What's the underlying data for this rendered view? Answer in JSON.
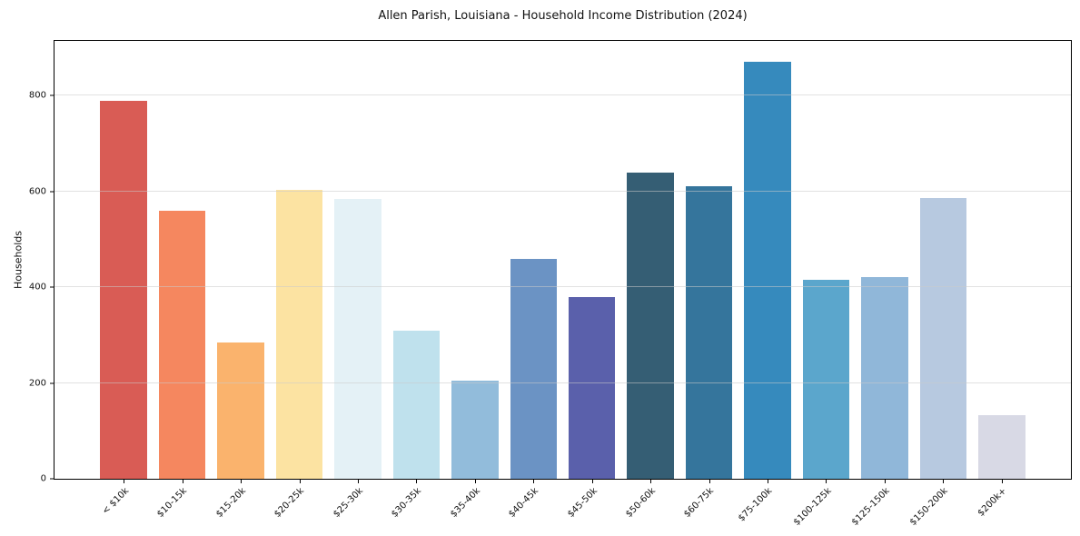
{
  "chart_data": {
    "type": "bar",
    "title": "Allen Parish, Louisiana - Household Income Distribution (2024)",
    "xlabel": "",
    "ylabel": "Households",
    "categories": [
      "< $10k",
      "$10-15k",
      "$15-20k",
      "$20-25k",
      "$25-30k",
      "$30-35k",
      "$35-40k",
      "$40-45k",
      "$45-50k",
      "$50-60k",
      "$60-75k",
      "$75-100k",
      "$100-125k",
      "$125-150k",
      "$150-200k",
      "$200k+"
    ],
    "values": [
      788,
      560,
      285,
      603,
      585,
      310,
      204,
      458,
      380,
      640,
      610,
      870,
      415,
      421,
      586,
      132
    ],
    "bar_colors": [
      "#d95c55",
      "#f5875f",
      "#fab36d",
      "#fce3a2",
      "#e4f1f6",
      "#bfe1ed",
      "#92bcdb",
      "#6b93c4",
      "#5a60ab",
      "#355e74",
      "#35759c",
      "#368abd",
      "#5ba6cc",
      "#90b7d9",
      "#b7c9e0",
      "#d8d9e5"
    ],
    "ylim": [
      0,
      914
    ],
    "yticks": [
      0,
      200,
      400,
      600,
      800
    ],
    "grid": "horizontal",
    "legend": "none",
    "background_color": "#ffffff",
    "spine_color": "#000000",
    "grid_color": "#e6e6e6"
  }
}
